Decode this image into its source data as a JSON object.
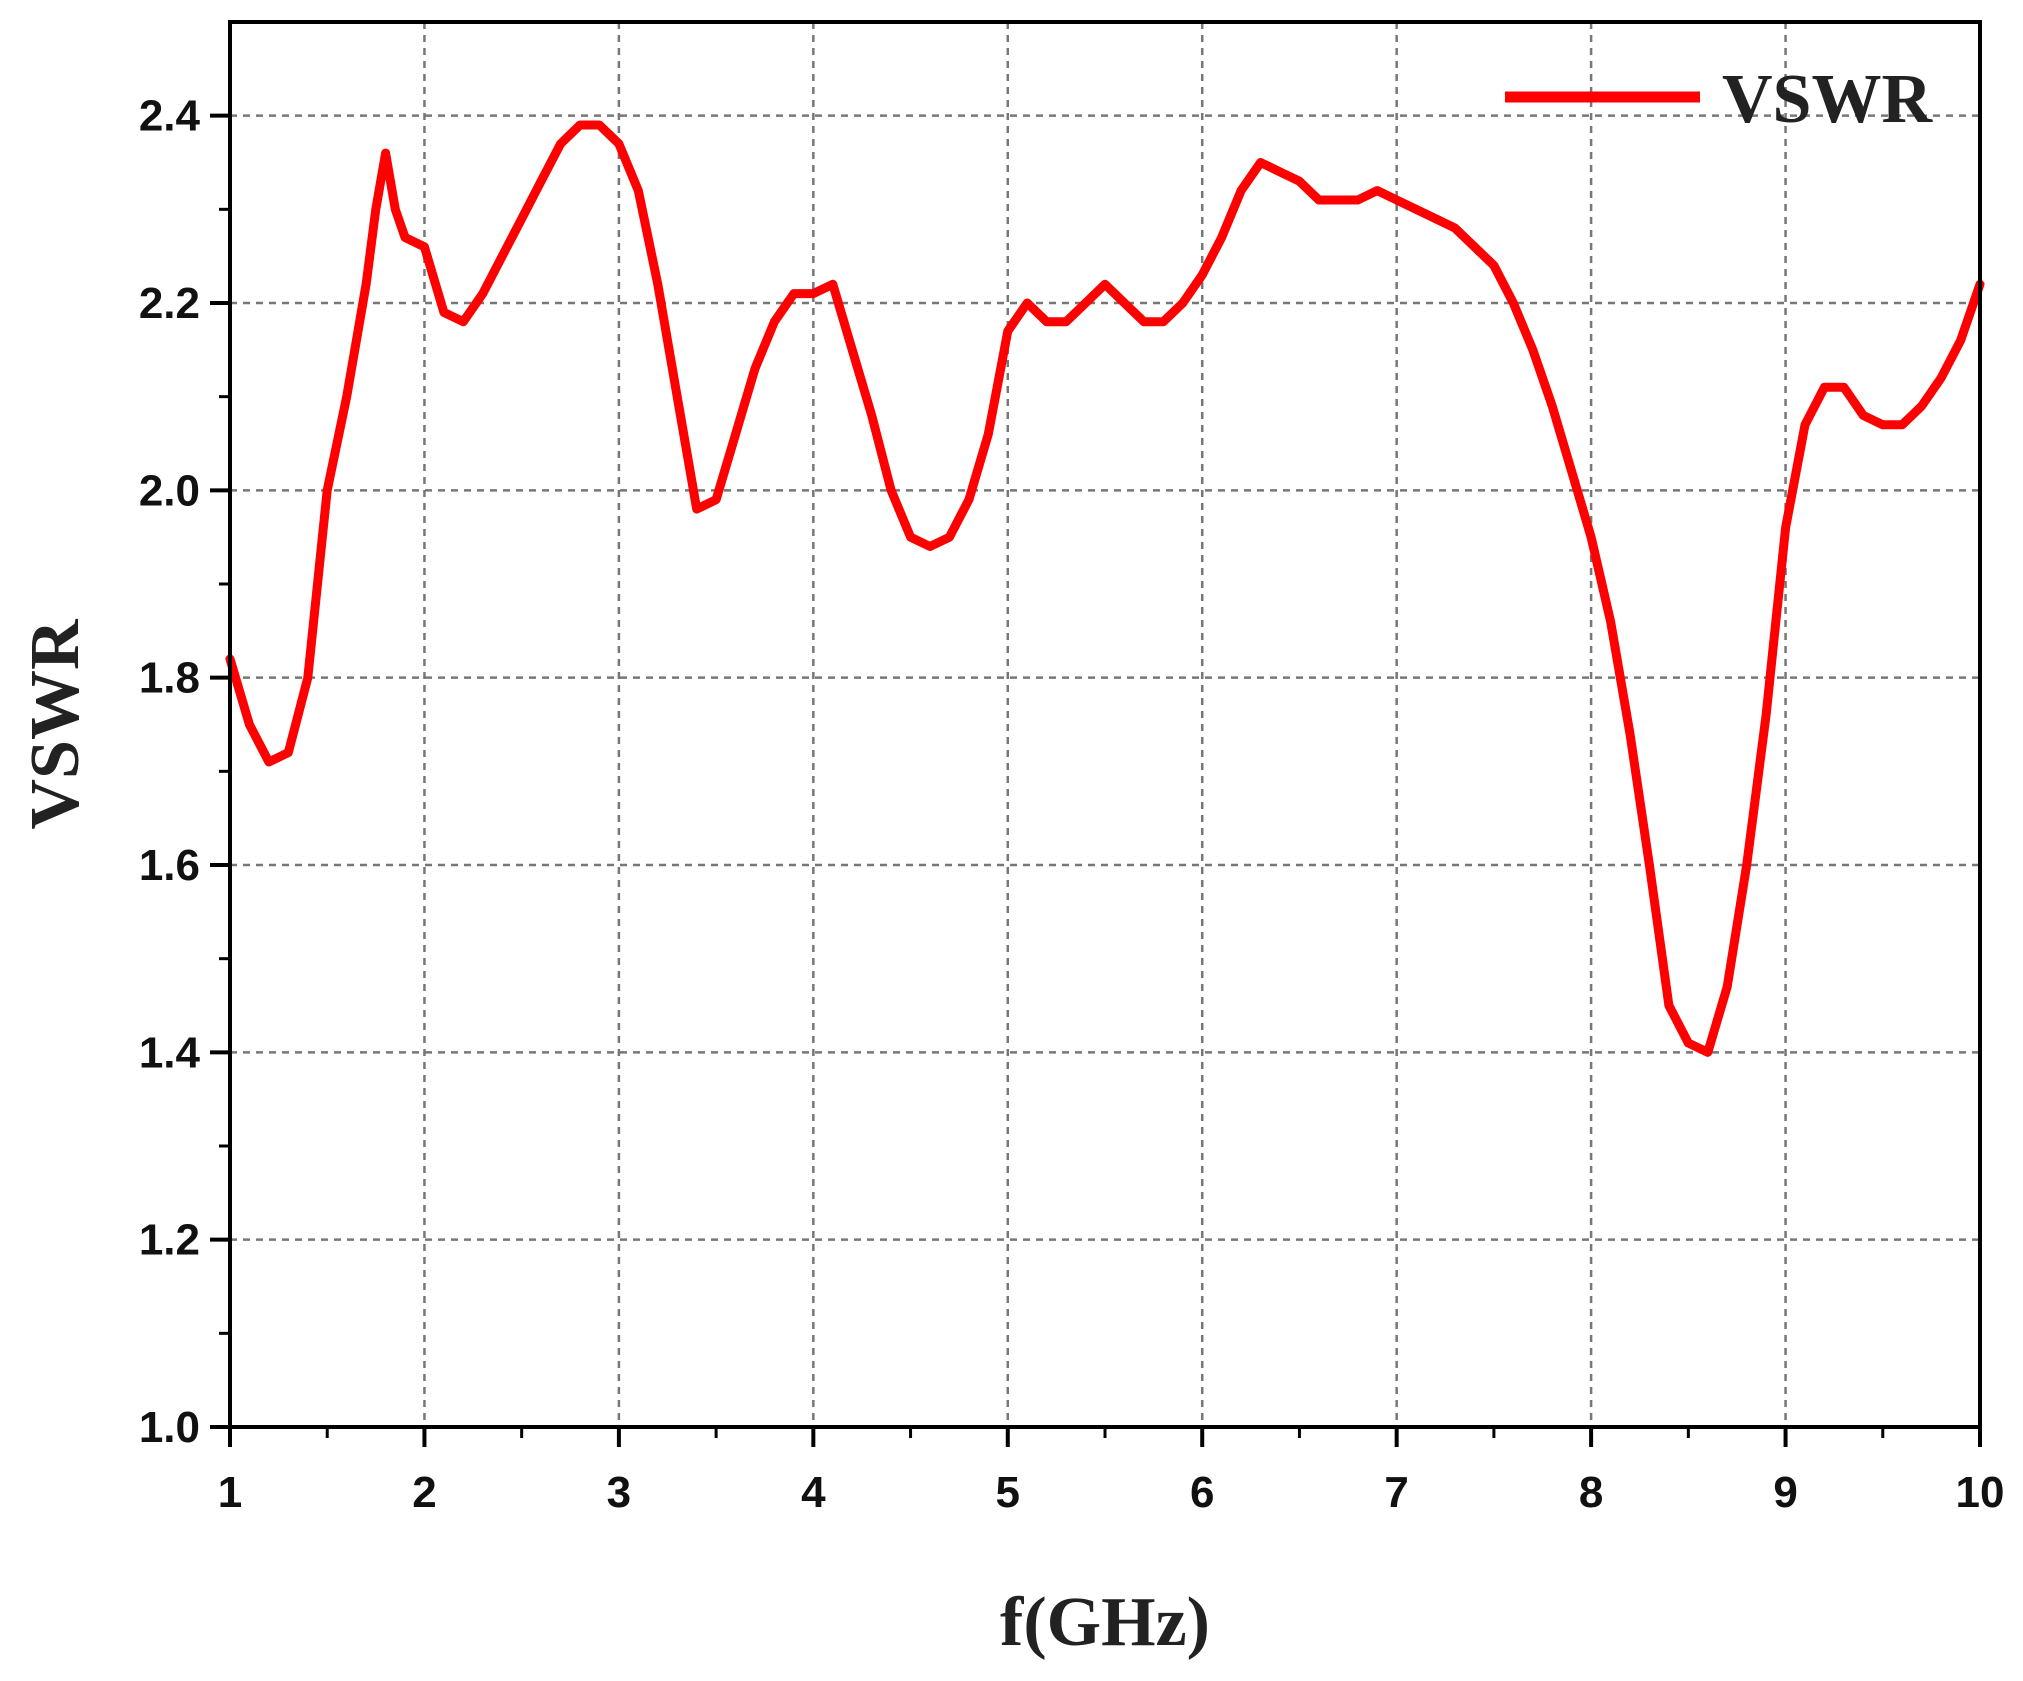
{
  "chart_data": {
    "type": "line",
    "title": "",
    "xlabel": "f(GHz)",
    "ylabel": "VSWR",
    "xlim": [
      1,
      10
    ],
    "ylim": [
      1.0,
      2.5
    ],
    "x_ticks": [
      "1",
      "2",
      "3",
      "4",
      "5",
      "6",
      "7",
      "8",
      "9",
      "10"
    ],
    "y_ticks": [
      "1.0",
      "1.2",
      "1.4",
      "1.6",
      "1.8",
      "2.0",
      "2.2",
      "2.4"
    ],
    "grid": true,
    "legend_position": "top-right",
    "series": [
      {
        "name": "VSWR",
        "color": "#ff0000",
        "x": [
          1.0,
          1.1,
          1.2,
          1.3,
          1.4,
          1.5,
          1.6,
          1.7,
          1.75,
          1.8,
          1.85,
          1.9,
          2.0,
          2.1,
          2.2,
          2.3,
          2.4,
          2.5,
          2.6,
          2.7,
          2.8,
          2.9,
          3.0,
          3.1,
          3.2,
          3.3,
          3.4,
          3.5,
          3.6,
          3.7,
          3.8,
          3.9,
          4.0,
          4.1,
          4.2,
          4.3,
          4.4,
          4.5,
          4.6,
          4.7,
          4.8,
          4.9,
          5.0,
          5.1,
          5.2,
          5.3,
          5.4,
          5.5,
          5.6,
          5.7,
          5.8,
          5.9,
          6.0,
          6.1,
          6.2,
          6.3,
          6.4,
          6.5,
          6.6,
          6.7,
          6.8,
          6.9,
          7.0,
          7.1,
          7.2,
          7.3,
          7.4,
          7.5,
          7.6,
          7.7,
          7.8,
          7.9,
          8.0,
          8.1,
          8.2,
          8.3,
          8.4,
          8.5,
          8.6,
          8.7,
          8.8,
          8.9,
          9.0,
          9.1,
          9.2,
          9.3,
          9.4,
          9.5,
          9.6,
          9.7,
          9.8,
          9.9,
          10.0
        ],
        "values": [
          1.82,
          1.75,
          1.71,
          1.72,
          1.8,
          2.0,
          2.1,
          2.22,
          2.3,
          2.36,
          2.3,
          2.27,
          2.26,
          2.19,
          2.18,
          2.21,
          2.25,
          2.29,
          2.33,
          2.37,
          2.39,
          2.39,
          2.37,
          2.32,
          2.22,
          2.1,
          1.98,
          1.99,
          2.06,
          2.13,
          2.18,
          2.21,
          2.21,
          2.22,
          2.15,
          2.08,
          2.0,
          1.95,
          1.94,
          1.95,
          1.99,
          2.06,
          2.17,
          2.2,
          2.18,
          2.18,
          2.2,
          2.22,
          2.2,
          2.18,
          2.18,
          2.2,
          2.23,
          2.27,
          2.32,
          2.35,
          2.34,
          2.33,
          2.31,
          2.31,
          2.31,
          2.32,
          2.31,
          2.3,
          2.29,
          2.28,
          2.26,
          2.24,
          2.2,
          2.15,
          2.09,
          2.02,
          1.95,
          1.86,
          1.74,
          1.6,
          1.45,
          1.41,
          1.4,
          1.47,
          1.6,
          1.76,
          1.96,
          2.07,
          2.11,
          2.11,
          2.08,
          2.07,
          2.07,
          2.09,
          2.12,
          2.16,
          2.22
        ]
      }
    ],
    "legend": [
      {
        "label": "VSWR",
        "color": "#ff0000"
      }
    ]
  }
}
